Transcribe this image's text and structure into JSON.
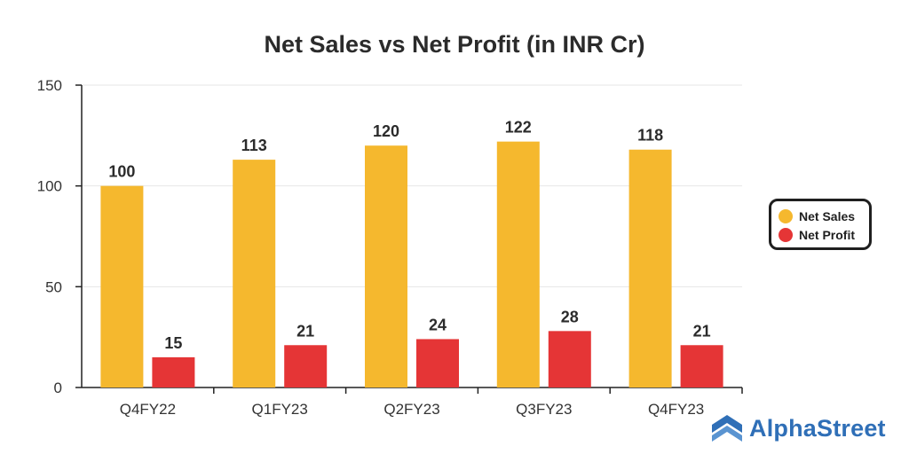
{
  "colors": {
    "net_sales": "#F5B82E",
    "net_profit": "#E53536",
    "grid": "#e6e6e6",
    "axis": "#222222",
    "brand": "#2f6fb7"
  },
  "chart_data": {
    "type": "bar",
    "title": "Net Sales vs Net Profit (in INR Cr)",
    "xlabel": "",
    "ylabel": "",
    "categories": [
      "Q4FY22",
      "Q1FY23",
      "Q2FY23",
      "Q3FY23",
      "Q4FY23"
    ],
    "series": [
      {
        "name": "Net Sales",
        "values": [
          100,
          113,
          120,
          122,
          118
        ],
        "color": "#F5B82E"
      },
      {
        "name": "Net Profit",
        "values": [
          15,
          21,
          24,
          28,
          21
        ],
        "color": "#E53536"
      }
    ],
    "ylim": [
      0,
      150
    ],
    "yticks": [
      0,
      50,
      100,
      150
    ],
    "grid": true,
    "legend": "right"
  },
  "brand": {
    "name": "AlphaStreet",
    "logo_icon": "alphastreet-logo-icon"
  }
}
